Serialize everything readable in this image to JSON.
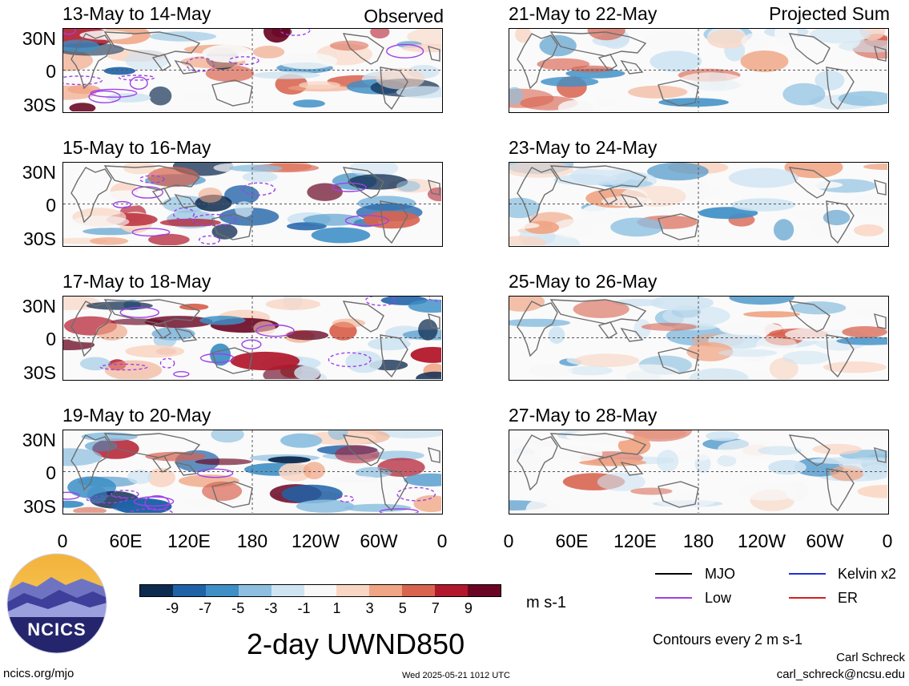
{
  "header": {
    "observed_label": "Observed",
    "projected_label": "Projected Sum"
  },
  "panels": {
    "left": [
      "13-May to 14-May",
      "15-May to 16-May",
      "17-May to 18-May",
      "19-May to 20-May"
    ],
    "right": [
      "21-May to 22-May",
      "23-May to 24-May",
      "25-May to 26-May",
      "27-May to 28-May"
    ]
  },
  "axes": {
    "y_ticks": [
      "30N",
      "0",
      "30S"
    ],
    "x_ticks": [
      "0",
      "60E",
      "120E",
      "180",
      "120W",
      "60W",
      "0"
    ]
  },
  "colorbar": {
    "colors": [
      "#0d2a4f",
      "#1f62a8",
      "#3e8fc6",
      "#8cbfe0",
      "#cfe4f2",
      "#f8f8f8",
      "#f9d6c4",
      "#f0a584",
      "#d8634f",
      "#b2182b",
      "#6a0624"
    ],
    "labels": [
      "-9",
      "-7",
      "-5",
      "-3",
      "-1",
      "1",
      "3",
      "5",
      "7",
      "9"
    ],
    "units": "m s-1"
  },
  "legend": {
    "items": [
      {
        "label": "MJO",
        "color": "#000000"
      },
      {
        "label": "Kelvin x2",
        "color": "#1f2fd6"
      },
      {
        "label": "Low",
        "color": "#a040e8"
      },
      {
        "label": "ER",
        "color": "#d42020"
      }
    ],
    "contours_note": "Contours every 2 m s-1"
  },
  "logo_text": "NCICS",
  "main_title": "2-day UWND850",
  "footer": {
    "left_url": "ncics.org/mjo",
    "timestamp": "Wed 2025-05-21 1012 UTC",
    "author": "Carl Schreck",
    "email": "carl_schreck@ncsu.edu"
  }
}
